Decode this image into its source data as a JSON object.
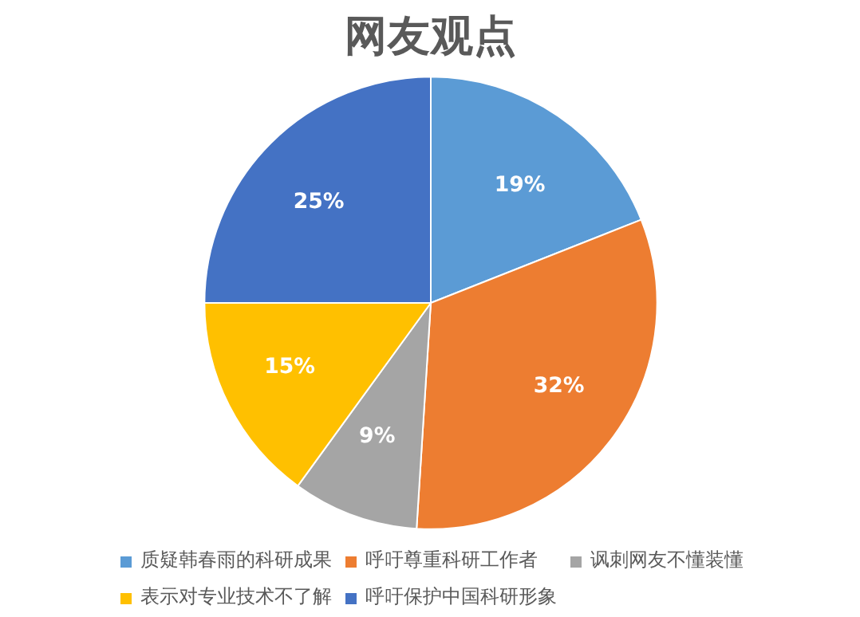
{
  "chart_data": {
    "type": "pie",
    "title": "网友观点",
    "categories": [
      "质疑韩春雨的科研成果",
      "呼吁尊重科研工作者",
      "讽刺网友不懂装懂",
      "表示对专业技术不了解",
      "呼吁保护中国科研形象"
    ],
    "values": [
      19,
      32,
      9,
      15,
      25
    ],
    "colors": [
      "#5b9bd5",
      "#ed7d31",
      "#a5a5a5",
      "#ffc000",
      "#4472c4"
    ],
    "value_labels": [
      "19%",
      "32%",
      "9%",
      "15%",
      "25%"
    ],
    "legend": "bottom"
  }
}
